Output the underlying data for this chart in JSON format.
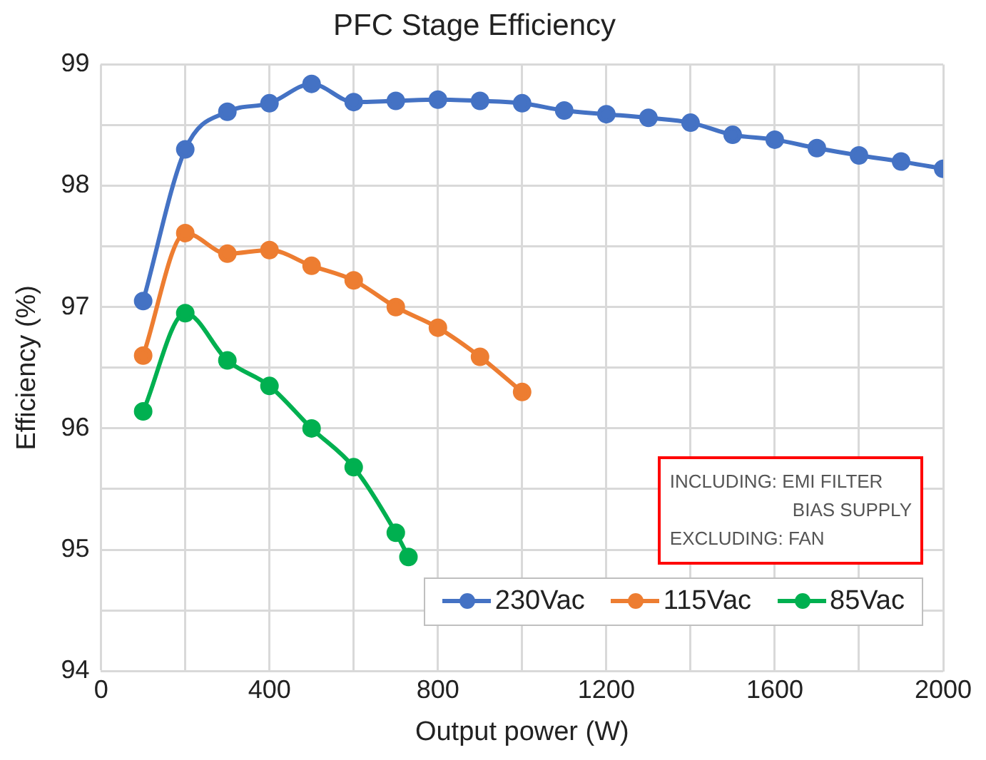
{
  "chart_data": {
    "type": "line",
    "title": "PFC Stage Efficiency",
    "xlabel": "Output power (W)",
    "ylabel": "Efficiency (%)",
    "xlim": [
      0,
      2000
    ],
    "xticks": [
      0,
      {
        "value": 200,
        "label": null
      },
      400,
      {
        "value": 600,
        "label": null
      },
      800,
      {
        "value": 1000,
        "label": null
      },
      1200,
      {
        "value": 1400,
        "label": null
      },
      1600,
      {
        "value": 1800,
        "label": null
      },
      2000
    ],
    "ylim": [
      94,
      99
    ],
    "yticks": [
      94,
      {
        "value": 94.5,
        "label": null
      },
      95,
      {
        "value": 95.5,
        "label": null
      },
      96,
      {
        "value": 96.5,
        "label": null
      },
      97,
      {
        "value": 97.5,
        "label": null
      },
      98,
      {
        "value": 98.5,
        "label": null
      },
      99
    ],
    "grid": true,
    "legend": "bottom right",
    "marker": "circle",
    "line_style": "solid",
    "annotations": [
      "INCLUDING: EMI FILTER",
      "BIAS SUPPLY",
      "EXCLUDING: FAN"
    ],
    "series": [
      {
        "name": "230Vac",
        "color": "#4472c4",
        "x": [
          100,
          200,
          300,
          400,
          500,
          600,
          700,
          800,
          900,
          1000,
          1100,
          1200,
          1300,
          1400,
          1500,
          1600,
          1700,
          1800,
          1900,
          2000
        ],
        "values": [
          97.05,
          98.3,
          98.61,
          98.68,
          98.84,
          98.69,
          98.7,
          98.71,
          98.7,
          98.68,
          98.62,
          98.59,
          98.56,
          98.52,
          98.42,
          98.38,
          98.31,
          98.25,
          98.2,
          98.14
        ]
      },
      {
        "name": "115Vac",
        "color": "#ed7d31",
        "x": [
          100,
          200,
          300,
          400,
          500,
          600,
          700,
          800,
          900,
          1000
        ],
        "values": [
          96.6,
          97.61,
          97.44,
          97.47,
          97.34,
          97.22,
          97.0,
          96.83,
          96.59,
          96.3
        ]
      },
      {
        "name": "85Vac",
        "color": "#00b050",
        "x": [
          100,
          200,
          300,
          400,
          500,
          600,
          700,
          730
        ],
        "values": [
          96.14,
          96.95,
          96.56,
          96.35,
          96.0,
          95.68,
          95.14,
          94.94
        ]
      }
    ]
  }
}
